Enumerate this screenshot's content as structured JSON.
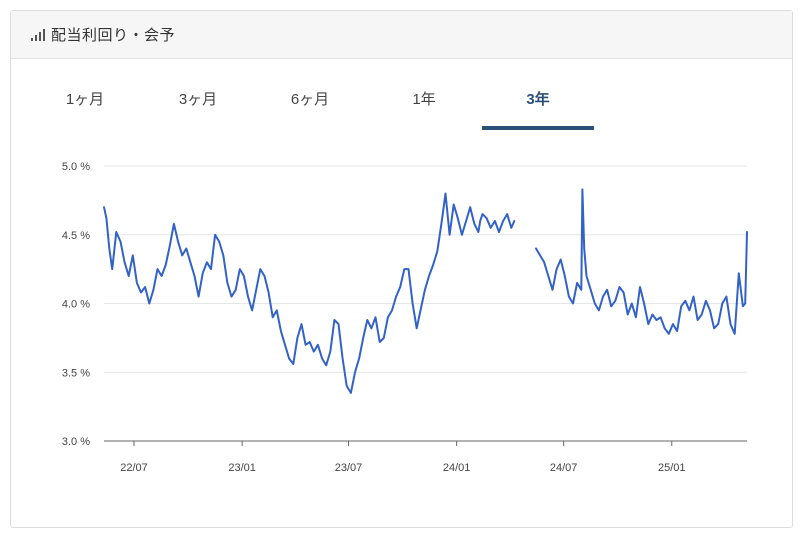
{
  "header": {
    "title": "配当利回り・会予"
  },
  "tabs": [
    {
      "label": "1ヶ月"
    },
    {
      "label": "3ヶ月"
    },
    {
      "label": "6ヶ月"
    },
    {
      "label": "1年"
    },
    {
      "label": "3年",
      "active": true
    }
  ],
  "colors": {
    "line": "#3262c8",
    "accent": "#2c4f79",
    "grid": "#e6e6e6"
  },
  "chart_data": {
    "type": "line",
    "title": "",
    "xlabel": "",
    "ylabel": "",
    "ylim": [
      3.0,
      5.0
    ],
    "y_ticks": [
      3.0,
      3.5,
      4.0,
      4.5,
      5.0
    ],
    "y_tick_labels": [
      "3.0 %",
      "3.5 %",
      "4.0 %",
      "4.5 %",
      "5.0 %"
    ],
    "x_range": [
      "2022-05-11",
      "2025-05-09"
    ],
    "x_ticks": [
      {
        "date": "2022-07-01",
        "label": "22/07"
      },
      {
        "date": "2023-01-01",
        "label": "23/01"
      },
      {
        "date": "2023-07-01",
        "label": "23/07"
      },
      {
        "date": "2024-01-01",
        "label": "24/01"
      },
      {
        "date": "2024-07-01",
        "label": "24/07"
      },
      {
        "date": "2025-01-01",
        "label": "25/01"
      }
    ],
    "grid": true,
    "series": [
      {
        "name": "",
        "segments": [
          {
            "x": [
              "2022-05-11",
              "2022-05-15",
              "2022-05-20",
              "2022-05-25",
              "2022-06-01",
              "2022-06-08",
              "2022-06-15",
              "2022-06-22",
              "2022-06-29",
              "2022-07-06",
              "2022-07-13",
              "2022-07-20",
              "2022-07-27",
              "2022-08-03",
              "2022-08-10",
              "2022-08-17",
              "2022-08-24",
              "2022-08-31",
              "2022-09-07",
              "2022-09-14",
              "2022-09-21",
              "2022-09-28",
              "2022-10-05",
              "2022-10-12",
              "2022-10-19",
              "2022-10-26",
              "2022-11-02",
              "2022-11-09",
              "2022-11-16",
              "2022-11-23",
              "2022-11-30",
              "2022-12-07",
              "2022-12-14",
              "2022-12-21",
              "2022-12-28",
              "2023-01-04",
              "2023-01-11",
              "2023-01-18",
              "2023-01-25",
              "2023-02-01",
              "2023-02-08",
              "2023-02-15",
              "2023-02-22",
              "2023-03-01",
              "2023-03-08",
              "2023-03-15",
              "2023-03-22",
              "2023-03-29",
              "2023-04-05",
              "2023-04-12",
              "2023-04-19",
              "2023-04-26",
              "2023-05-03",
              "2023-05-10",
              "2023-05-17",
              "2023-05-24",
              "2023-05-31",
              "2023-06-07",
              "2023-06-14",
              "2023-06-21",
              "2023-06-28",
              "2023-07-05",
              "2023-07-12",
              "2023-07-19",
              "2023-07-26",
              "2023-08-02",
              "2023-08-09",
              "2023-08-16",
              "2023-08-23",
              "2023-08-30",
              "2023-09-06",
              "2023-09-13",
              "2023-09-20",
              "2023-09-27",
              "2023-10-04",
              "2023-10-11",
              "2023-10-18",
              "2023-10-25",
              "2023-11-01",
              "2023-11-08",
              "2023-11-15",
              "2023-11-22",
              "2023-11-29",
              "2023-12-06",
              "2023-12-13",
              "2023-12-20",
              "2023-12-27",
              "2024-01-03",
              "2024-01-10",
              "2024-01-17",
              "2024-01-24",
              "2024-01-31",
              "2024-02-07",
              "2024-02-10",
              "2024-02-14",
              "2024-02-21",
              "2024-02-28",
              "2024-03-06",
              "2024-03-13",
              "2024-03-20",
              "2024-03-27",
              "2024-04-03",
              "2024-04-08"
            ],
            "y": [
              4.7,
              4.62,
              4.4,
              4.25,
              4.52,
              4.45,
              4.3,
              4.2,
              4.35,
              4.15,
              4.08,
              4.12,
              4.0,
              4.1,
              4.25,
              4.2,
              4.28,
              4.42,
              4.58,
              4.45,
              4.35,
              4.4,
              4.3,
              4.2,
              4.05,
              4.22,
              4.3,
              4.25,
              4.5,
              4.45,
              4.35,
              4.15,
              4.05,
              4.1,
              4.25,
              4.2,
              4.05,
              3.95,
              4.1,
              4.25,
              4.2,
              4.08,
              3.9,
              3.95,
              3.8,
              3.7,
              3.6,
              3.56,
              3.75,
              3.85,
              3.7,
              3.72,
              3.65,
              3.7,
              3.6,
              3.55,
              3.65,
              3.88,
              3.85,
              3.6,
              3.4,
              3.35,
              3.5,
              3.6,
              3.75,
              3.88,
              3.82,
              3.9,
              3.72,
              3.75,
              3.9,
              3.95,
              4.05,
              4.12,
              4.25,
              4.25,
              4.0,
              3.82,
              3.96,
              4.1,
              4.2,
              4.28,
              4.38,
              4.58,
              4.8,
              4.5,
              4.72,
              4.62,
              4.5,
              4.6,
              4.7,
              4.58,
              4.52,
              4.6,
              4.65,
              4.62,
              4.55,
              4.6,
              4.52,
              4.6,
              4.65,
              4.55,
              4.6
            ]
          },
          {
            "x": [
              "2024-05-15",
              "2024-05-22",
              "2024-05-29",
              "2024-06-05",
              "2024-06-12",
              "2024-06-19",
              "2024-06-26",
              "2024-07-03",
              "2024-07-10",
              "2024-07-17",
              "2024-07-24",
              "2024-07-31",
              "2024-08-02",
              "2024-08-05",
              "2024-08-09",
              "2024-08-16",
              "2024-08-23",
              "2024-08-30",
              "2024-09-06",
              "2024-09-13",
              "2024-09-20",
              "2024-09-27",
              "2024-10-04",
              "2024-10-11",
              "2024-10-18",
              "2024-10-25",
              "2024-11-01",
              "2024-11-08",
              "2024-11-15",
              "2024-11-22",
              "2024-11-29",
              "2024-12-06",
              "2024-12-13",
              "2024-12-20",
              "2024-12-27",
              "2025-01-03",
              "2025-01-10",
              "2025-01-17",
              "2025-01-24",
              "2025-01-31",
              "2025-02-07",
              "2025-02-14",
              "2025-02-21",
              "2025-02-28",
              "2025-03-07",
              "2025-03-14",
              "2025-03-21",
              "2025-03-28",
              "2025-04-04",
              "2025-04-11",
              "2025-04-18",
              "2025-04-25",
              "2025-05-02",
              "2025-05-06",
              "2025-05-09"
            ],
            "y": [
              4.4,
              4.35,
              4.3,
              4.2,
              4.1,
              4.25,
              4.32,
              4.2,
              4.05,
              4.0,
              4.15,
              4.1,
              4.83,
              4.4,
              4.2,
              4.1,
              4.0,
              3.95,
              4.05,
              4.1,
              3.98,
              4.02,
              4.12,
              4.08,
              3.92,
              4.0,
              3.9,
              4.12,
              4.0,
              3.85,
              3.92,
              3.88,
              3.9,
              3.82,
              3.78,
              3.85,
              3.8,
              3.98,
              4.02,
              3.95,
              4.05,
              3.88,
              3.92,
              4.02,
              3.95,
              3.82,
              3.85,
              4.0,
              4.05,
              3.85,
              3.78,
              4.22,
              3.98,
              4.0,
              4.52
            ]
          }
        ]
      }
    ]
  }
}
